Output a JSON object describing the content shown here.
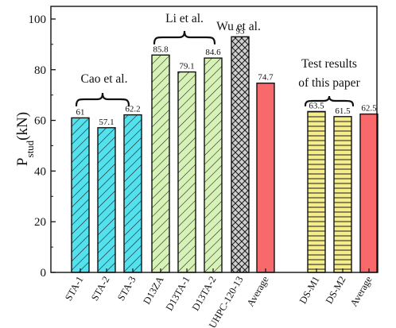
{
  "chart_data": {
    "type": "bar",
    "ylabel": "P",
    "ylabel_sub": "stud",
    "ylabel_unit": "(kN)",
    "ylim": [
      0,
      105
    ],
    "yticks": [
      0,
      20,
      40,
      60,
      80,
      100
    ],
    "grid": false,
    "bars": [
      {
        "label": "STA-1",
        "value": 61,
        "value_label": "61",
        "color": "#54e1ee",
        "pattern": "hatch-diag"
      },
      {
        "label": "STA-2",
        "value": 57.1,
        "value_label": "57.1",
        "color": "#54e1ee",
        "pattern": "hatch-diag"
      },
      {
        "label": "STA-3",
        "value": 62.2,
        "value_label": "62.2",
        "color": "#54e1ee",
        "pattern": "hatch-diag"
      },
      {
        "label": "D13ZA",
        "value": 85.8,
        "value_label": "85.8",
        "color": "#d7f2b7",
        "pattern": "hatch-diag"
      },
      {
        "label": "D13TA-1",
        "value": 79.1,
        "value_label": "79.1",
        "color": "#d7f2b7",
        "pattern": "hatch-diag"
      },
      {
        "label": "D13TA-2",
        "value": 84.6,
        "value_label": "84.6",
        "color": "#d7f2b7",
        "pattern": "hatch-diag"
      },
      {
        "label": "UHPC-120-13",
        "value": 93,
        "value_label": "93",
        "color": "#cfcfcf",
        "pattern": "crosshatch"
      },
      {
        "label": "Average",
        "value": 74.7,
        "value_label": "74.7",
        "color": "#f7696b",
        "pattern": "solid"
      },
      {
        "label": "DS-M1",
        "value": 63.5,
        "value_label": "63.5",
        "color": "#f5ec8c",
        "pattern": "horizontal"
      },
      {
        "label": "DS-M2",
        "value": 61.5,
        "value_label": "61.5",
        "color": "#f5ec8c",
        "pattern": "horizontal"
      },
      {
        "label": "Average",
        "value": 62.5,
        "value_label": "62.5",
        "color": "#f7696b",
        "pattern": "solid"
      }
    ],
    "annotations": [
      {
        "text": "Cao et al.",
        "bars": [
          0,
          2
        ]
      },
      {
        "text": "Li et al.",
        "bars": [
          3,
          5
        ]
      },
      {
        "text": "Wu et al.",
        "bars": [
          6,
          6
        ]
      },
      {
        "text": "Test results of this paper",
        "lines": [
          "Test results",
          "of this paper"
        ],
        "bars": [
          8,
          9
        ]
      }
    ]
  }
}
